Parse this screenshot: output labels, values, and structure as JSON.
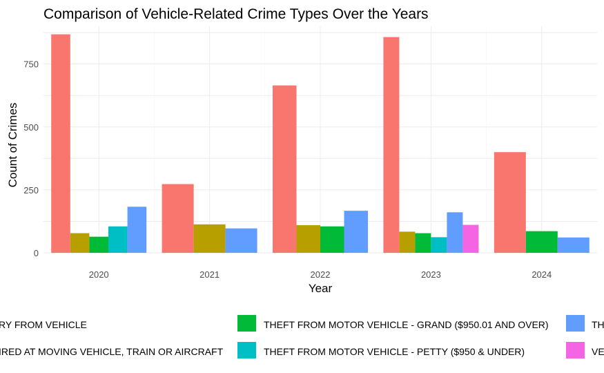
{
  "chart_data": {
    "type": "bar",
    "title": "Comparison of Vehicle-Related Crime Types Over the Years",
    "xlabel": "Year",
    "ylabel": "Count of Crimes",
    "categories": [
      "2020",
      "2021",
      "2022",
      "2023",
      "2024"
    ],
    "ylim": [
      0,
      900
    ],
    "yticks": [
      0,
      250,
      500,
      750
    ],
    "grid": true,
    "legend_position": "bottom",
    "series": [
      {
        "name": "BURGLARY FROM VEHICLE",
        "label_visible": "RY FROM VEHICLE",
        "color": "#F8766D",
        "values": [
          868,
          273,
          665,
          857,
          400
        ]
      },
      {
        "name": "SHOTS FIRED AT MOVING VEHICLE, TRAIN OR AIRCRAFT",
        "label_visible": "IRED AT MOVING VEHICLE, TRAIN OR AIRCRAFT",
        "color": "#B79F00",
        "values": [
          78,
          113,
          110,
          84,
          null
        ]
      },
      {
        "name": "THEFT FROM MOTOR VEHICLE - GRAND ($950.01 AND OVER)",
        "label_visible": "THEFT FROM MOTOR VEHICLE - GRAND ($950.01 AND OVER)",
        "color": "#00BA38",
        "values": [
          64,
          null,
          105,
          78,
          86
        ]
      },
      {
        "name": "THEFT FROM MOTOR VEHICLE - PETTY ($950 & UNDER)",
        "label_visible": "THEFT FROM MOTOR VEHICLE - PETTY ($950 & UNDER)",
        "color": "#00BFC4",
        "values": [
          105,
          null,
          null,
          62,
          null
        ]
      },
      {
        "name": "TH",
        "label_visible": "TH",
        "color": "#619CFF",
        "values": [
          183,
          97,
          167,
          161,
          61
        ]
      },
      {
        "name": "VE",
        "label_visible": "VE",
        "color": "#F564E3",
        "values": [
          null,
          null,
          null,
          111,
          null
        ]
      }
    ]
  }
}
